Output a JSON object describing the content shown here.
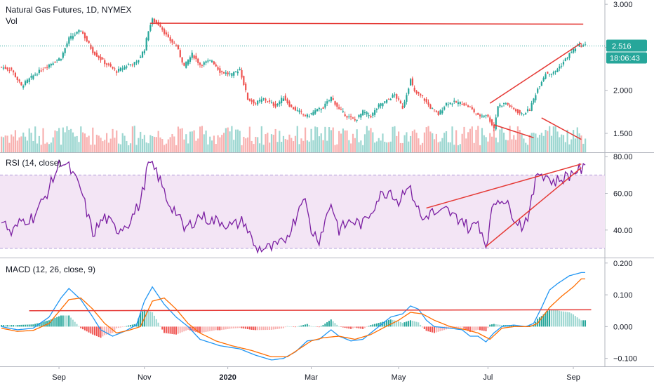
{
  "chart_data": [
    {
      "type": "candlestick",
      "title": "Natural Gas Futures, 1D, NYMEX",
      "volume_label": "Vol",
      "ylim": [
        1.28,
        3.05
      ],
      "yticks": [
        3.0,
        2.5,
        2.0,
        1.5
      ],
      "ytick_labels": [
        "3.000",
        "2.500",
        "2.000",
        "1.500"
      ],
      "last_price": 2.516,
      "last_price_label": "2.516",
      "countdown_label": "18:06:43",
      "colors": {
        "up": "#26a69a",
        "down": "#ef5350",
        "trendline": "#e53935",
        "badge": "#26a69a",
        "countdown_bg": "#131722"
      },
      "close_anchors": [
        [
          0,
          2.27
        ],
        [
          5,
          2.24
        ],
        [
          10,
          2.05
        ],
        [
          16,
          2.17
        ],
        [
          24,
          2.3
        ],
        [
          30,
          2.38
        ],
        [
          34,
          2.6
        ],
        [
          40,
          2.7
        ],
        [
          46,
          2.45
        ],
        [
          52,
          2.32
        ],
        [
          58,
          2.22
        ],
        [
          64,
          2.3
        ],
        [
          68,
          2.32
        ],
        [
          72,
          2.48
        ],
        [
          74,
          2.7
        ],
        [
          76,
          2.82
        ],
        [
          80,
          2.75
        ],
        [
          84,
          2.6
        ],
        [
          88,
          2.52
        ],
        [
          92,
          2.28
        ],
        [
          96,
          2.42
        ],
        [
          100,
          2.3
        ],
        [
          106,
          2.35
        ],
        [
          110,
          2.22
        ],
        [
          116,
          2.18
        ],
        [
          120,
          2.25
        ],
        [
          124,
          1.9
        ],
        [
          128,
          1.85
        ],
        [
          132,
          1.9
        ],
        [
          138,
          1.82
        ],
        [
          142,
          1.92
        ],
        [
          146,
          1.8
        ],
        [
          150,
          1.75
        ],
        [
          154,
          1.7
        ],
        [
          158,
          1.76
        ],
        [
          162,
          1.8
        ],
        [
          166,
          1.92
        ],
        [
          170,
          1.78
        ],
        [
          174,
          1.7
        ],
        [
          178,
          1.65
        ],
        [
          182,
          1.75
        ],
        [
          186,
          1.7
        ],
        [
          190,
          1.82
        ],
        [
          194,
          1.88
        ],
        [
          198,
          1.95
        ],
        [
          202,
          1.8
        ],
        [
          206,
          2.12
        ],
        [
          208,
          1.98
        ],
        [
          212,
          1.92
        ],
        [
          216,
          1.8
        ],
        [
          220,
          1.72
        ],
        [
          224,
          1.85
        ],
        [
          228,
          1.86
        ],
        [
          232,
          1.85
        ],
        [
          236,
          1.8
        ],
        [
          240,
          1.7
        ],
        [
          244,
          1.72
        ],
        [
          246,
          1.65
        ],
        [
          248,
          1.56
        ],
        [
          250,
          1.82
        ],
        [
          254,
          1.85
        ],
        [
          258,
          1.78
        ],
        [
          262,
          1.72
        ],
        [
          266,
          1.78
        ],
        [
          270,
          2.02
        ],
        [
          274,
          2.2
        ],
        [
          278,
          2.2
        ],
        [
          282,
          2.3
        ],
        [
          286,
          2.42
        ],
        [
          290,
          2.52
        ]
      ],
      "trendlines": [
        {
          "from": [
            75,
            2.78
          ],
          "to": [
            293,
            2.77
          ]
        },
        {
          "from": [
            246,
            1.85
          ],
          "to": [
            292,
            2.55
          ]
        },
        {
          "from": [
            248,
            1.6
          ],
          "to": [
            268,
            1.45
          ]
        },
        {
          "from": [
            272,
            1.68
          ],
          "to": [
            292,
            1.43
          ]
        }
      ]
    },
    {
      "type": "line",
      "title": "RSI (14, close)",
      "ylim": [
        25,
        82
      ],
      "yticks": [
        80,
        60,
        40
      ],
      "ytick_labels": [
        "80.00",
        "60.00",
        "40.00"
      ],
      "band": [
        30,
        70
      ],
      "colors": {
        "line": "#7b1fa2",
        "band": "#f3e5f5",
        "trendline": "#e53935"
      },
      "anchors": [
        [
          0,
          46
        ],
        [
          5,
          38
        ],
        [
          10,
          45
        ],
        [
          16,
          47
        ],
        [
          22,
          58
        ],
        [
          30,
          78
        ],
        [
          34,
          74
        ],
        [
          40,
          62
        ],
        [
          46,
          38
        ],
        [
          52,
          47
        ],
        [
          58,
          40
        ],
        [
          64,
          44
        ],
        [
          70,
          55
        ],
        [
          74,
          76
        ],
        [
          78,
          72
        ],
        [
          84,
          55
        ],
        [
          88,
          50
        ],
        [
          92,
          40
        ],
        [
          100,
          48
        ],
        [
          106,
          45
        ],
        [
          110,
          45
        ],
        [
          116,
          42
        ],
        [
          122,
          45
        ],
        [
          128,
          30
        ],
        [
          136,
          30
        ],
        [
          142,
          33
        ],
        [
          148,
          46
        ],
        [
          152,
          60
        ],
        [
          156,
          40
        ],
        [
          160,
          35
        ],
        [
          166,
          55
        ],
        [
          170,
          40
        ],
        [
          176,
          45
        ],
        [
          182,
          43
        ],
        [
          186,
          50
        ],
        [
          190,
          58
        ],
        [
          196,
          62
        ],
        [
          200,
          55
        ],
        [
          204,
          65
        ],
        [
          208,
          57
        ],
        [
          212,
          45
        ],
        [
          216,
          50
        ],
        [
          220,
          48
        ],
        [
          224,
          51
        ],
        [
          228,
          47
        ],
        [
          232,
          46
        ],
        [
          236,
          40
        ],
        [
          240,
          45
        ],
        [
          244,
          32
        ],
        [
          248,
          55
        ],
        [
          252,
          58
        ],
        [
          258,
          48
        ],
        [
          262,
          42
        ],
        [
          266,
          50
        ],
        [
          270,
          72
        ],
        [
          274,
          70
        ],
        [
          278,
          66
        ],
        [
          282,
          68
        ],
        [
          286,
          70
        ],
        [
          290,
          73
        ]
      ],
      "trendlines": [
        {
          "from": [
            214,
            52
          ],
          "to": [
            292,
            76
          ]
        },
        {
          "from": [
            244,
            31
          ],
          "to": [
            292,
            74
          ]
        }
      ]
    },
    {
      "type": "line+bar",
      "title": "MACD (12, 26, close, 9)",
      "ylim": [
        -0.125,
        0.215
      ],
      "yticks": [
        0.2,
        0.1,
        0.0,
        -0.1
      ],
      "ytick_labels": [
        "0.200",
        "0.100",
        "0.000",
        "−0.100"
      ],
      "colors": {
        "macd": "#2196f3",
        "signal": "#ff6d00",
        "hist_up": "#26a69a",
        "hist_down": "#ef5350",
        "trendline": "#e53935"
      },
      "macd_anchors": [
        [
          0,
          0.0
        ],
        [
          8,
          -0.01
        ],
        [
          16,
          -0.005
        ],
        [
          24,
          0.03
        ],
        [
          30,
          0.09
        ],
        [
          34,
          0.12
        ],
        [
          40,
          0.085
        ],
        [
          46,
          0.03
        ],
        [
          50,
          -0.01
        ],
        [
          56,
          -0.03
        ],
        [
          62,
          -0.015
        ],
        [
          68,
          0.005
        ],
        [
          72,
          0.08
        ],
        [
          76,
          0.125
        ],
        [
          82,
          0.07
        ],
        [
          88,
          0.03
        ],
        [
          94,
          0.0
        ],
        [
          100,
          -0.04
        ],
        [
          110,
          -0.06
        ],
        [
          120,
          -0.07
        ],
        [
          128,
          -0.09
        ],
        [
          136,
          -0.105
        ],
        [
          142,
          -0.1
        ],
        [
          148,
          -0.08
        ],
        [
          154,
          -0.045
        ],
        [
          160,
          -0.04
        ],
        [
          166,
          -0.01
        ],
        [
          170,
          -0.03
        ],
        [
          176,
          -0.045
        ],
        [
          182,
          -0.04
        ],
        [
          190,
          0.0
        ],
        [
          196,
          0.03
        ],
        [
          202,
          0.04
        ],
        [
          206,
          0.065
        ],
        [
          210,
          0.055
        ],
        [
          214,
          0.02
        ],
        [
          218,
          0.0
        ],
        [
          226,
          -0.005
        ],
        [
          232,
          -0.01
        ],
        [
          236,
          -0.03
        ],
        [
          240,
          -0.03
        ],
        [
          244,
          -0.048
        ],
        [
          248,
          -0.02
        ],
        [
          252,
          0.0
        ],
        [
          258,
          0.005
        ],
        [
          264,
          0.0
        ],
        [
          268,
          0.01
        ],
        [
          272,
          0.06
        ],
        [
          276,
          0.115
        ],
        [
          280,
          0.135
        ],
        [
          286,
          0.16
        ],
        [
          292,
          0.17
        ]
      ],
      "signal_anchors": [
        [
          0,
          -0.005
        ],
        [
          8,
          -0.015
        ],
        [
          16,
          -0.012
        ],
        [
          24,
          0.01
        ],
        [
          30,
          0.055
        ],
        [
          34,
          0.085
        ],
        [
          40,
          0.09
        ],
        [
          46,
          0.055
        ],
        [
          52,
          0.01
        ],
        [
          58,
          -0.02
        ],
        [
          64,
          -0.012
        ],
        [
          70,
          0.0
        ],
        [
          76,
          0.08
        ],
        [
          82,
          0.09
        ],
        [
          88,
          0.055
        ],
        [
          94,
          0.01
        ],
        [
          100,
          -0.02
        ],
        [
          108,
          -0.045
        ],
        [
          116,
          -0.06
        ],
        [
          126,
          -0.075
        ],
        [
          136,
          -0.095
        ],
        [
          144,
          -0.095
        ],
        [
          150,
          -0.07
        ],
        [
          156,
          -0.045
        ],
        [
          162,
          -0.035
        ],
        [
          170,
          -0.03
        ],
        [
          178,
          -0.04
        ],
        [
          186,
          -0.025
        ],
        [
          192,
          -0.005
        ],
        [
          200,
          0.02
        ],
        [
          206,
          0.045
        ],
        [
          212,
          0.04
        ],
        [
          218,
          0.02
        ],
        [
          226,
          0.0
        ],
        [
          234,
          -0.01
        ],
        [
          240,
          -0.02
        ],
        [
          246,
          -0.04
        ],
        [
          252,
          -0.005
        ],
        [
          258,
          0.0
        ],
        [
          266,
          0.0
        ],
        [
          270,
          0.01
        ],
        [
          276,
          0.06
        ],
        [
          282,
          0.095
        ],
        [
          288,
          0.125
        ],
        [
          292,
          0.15
        ]
      ],
      "trendlines": [
        {
          "from": [
            14,
            0.05
          ],
          "to": [
            297,
            0.053
          ]
        }
      ]
    }
  ],
  "x_axis": {
    "labels": [
      {
        "text": "Sep",
        "bar": 29
      },
      {
        "text": "Nov",
        "bar": 72
      },
      {
        "text": "2020",
        "bar": 114
      },
      {
        "text": "Mar",
        "bar": 156
      },
      {
        "text": "May",
        "bar": 200
      },
      {
        "text": "Jul",
        "bar": 245
      },
      {
        "text": "Sep",
        "bar": 288
      }
    ]
  }
}
